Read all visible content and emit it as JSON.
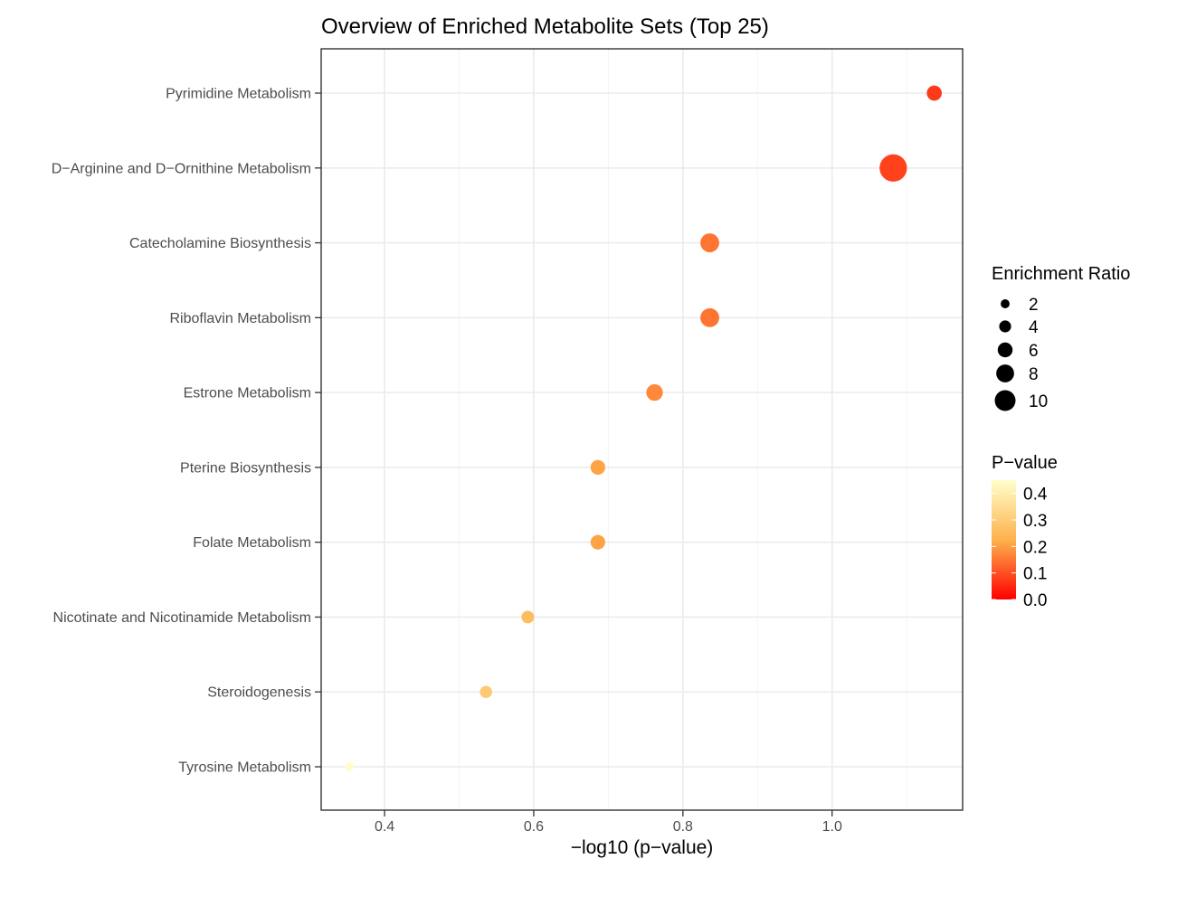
{
  "chart_data": {
    "type": "scatter",
    "title": "Overview of Enriched Metabolite Sets (Top 25)",
    "xlabel": "−log10 (p−value)",
    "ylabel": "",
    "xlim": [
      0.315,
      1.175
    ],
    "x_ticks": [
      0.4,
      0.6,
      0.8,
      1.0
    ],
    "x_tick_labels": [
      "0.4",
      "0.6",
      "0.8",
      "1.0"
    ],
    "grid": true,
    "categories": [
      "Pyrimidine Metabolism",
      "D−Arginine and D−Ornithine Metabolism",
      "Catecholamine Biosynthesis",
      "Riboflavin Metabolism",
      "Estrone Metabolism",
      "Pterine Biosynthesis",
      "Folate Metabolism",
      "Nicotinate and Nicotinamide Metabolism",
      "Steroidogenesis",
      "Tyrosine Metabolism"
    ],
    "points": [
      {
        "category": "Pyrimidine Metabolism",
        "x": 1.137,
        "p_value": 0.073,
        "enrichment_ratio": 4.5
      },
      {
        "category": "D−Arginine and D−Ornithine Metabolism",
        "x": 1.082,
        "p_value": 0.083,
        "enrichment_ratio": 11.0
      },
      {
        "category": "Catecholamine Biosynthesis",
        "x": 0.836,
        "p_value": 0.146,
        "enrichment_ratio": 6.5
      },
      {
        "category": "Riboflavin Metabolism",
        "x": 0.836,
        "p_value": 0.146,
        "enrichment_ratio": 6.5
      },
      {
        "category": "Estrone Metabolism",
        "x": 0.762,
        "p_value": 0.173,
        "enrichment_ratio": 5.3
      },
      {
        "category": "Pterine Biosynthesis",
        "x": 0.686,
        "p_value": 0.206,
        "enrichment_ratio": 4.3
      },
      {
        "category": "Folate Metabolism",
        "x": 0.686,
        "p_value": 0.206,
        "enrichment_ratio": 4.3
      },
      {
        "category": "Nicotinate and Nicotinamide Metabolism",
        "x": 0.592,
        "p_value": 0.256,
        "enrichment_ratio": 3.2
      },
      {
        "category": "Steroidogenesis",
        "x": 0.536,
        "p_value": 0.291,
        "enrichment_ratio": 3.0
      },
      {
        "category": "Tyrosine Metabolism",
        "x": 0.353,
        "p_value": 0.444,
        "enrichment_ratio": 1.0
      }
    ],
    "size_legend": {
      "title": "Enrichment Ratio",
      "values": [
        2,
        4,
        6,
        8,
        10
      ],
      "labels": [
        "2",
        "4",
        "6",
        "8",
        "10"
      ]
    },
    "color_legend": {
      "title": "P−value",
      "labels": [
        "0.4",
        "0.3",
        "0.2",
        "0.1",
        "0.0"
      ],
      "values": [
        0.4,
        0.3,
        0.2,
        0.1,
        0.0
      ],
      "range": [
        0.0,
        0.45
      ],
      "low_color": "#ff0000",
      "high_color": "#ffffcc"
    }
  }
}
